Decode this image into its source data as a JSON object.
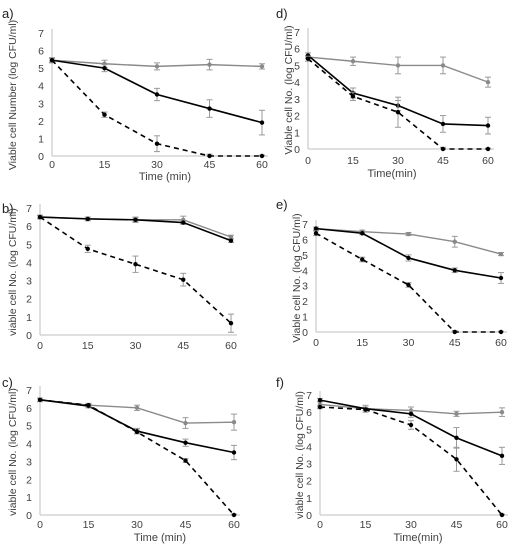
{
  "chart_data": [
    {
      "panel_label": "a)",
      "type": "line",
      "ylabel": "Viable cell Number (log CFU/ml)",
      "xlabel": "Time (min)",
      "x": [
        0,
        15,
        30,
        45,
        60
      ],
      "xticks": [
        "0",
        "15",
        "30",
        "45",
        "60"
      ],
      "ylim": [
        0,
        7
      ],
      "yticks": [
        "0",
        "1",
        "2",
        "3",
        "4",
        "5",
        "6",
        "7"
      ],
      "series": [
        {
          "style": "gray-solid",
          "values": [
            5.45,
            5.25,
            5.1,
            5.2,
            5.1
          ],
          "err": [
            0.15,
            0.2,
            0.2,
            0.3,
            0.15
          ]
        },
        {
          "style": "black-solid",
          "values": [
            5.45,
            5.0,
            3.5,
            2.7,
            1.9
          ],
          "err": [
            0.1,
            0.2,
            0.35,
            0.5,
            0.7
          ]
        },
        {
          "style": "black-dashed",
          "values": [
            5.45,
            2.35,
            0.7,
            0.0,
            0.0
          ],
          "err": [
            0.1,
            0.15,
            0.45,
            0.1,
            0.05
          ]
        }
      ]
    },
    {
      "panel_label": "b)",
      "type": "line",
      "ylabel": "viable cell No. (log CFU/ml)",
      "xlabel": "",
      "x": [
        0,
        15,
        30,
        45,
        60
      ],
      "xticks": [
        "0",
        "15",
        "30",
        "45",
        "60"
      ],
      "ylim": [
        0,
        7
      ],
      "yticks": [
        "0",
        "1",
        "2",
        "3",
        "4",
        "5",
        "6",
        "7"
      ],
      "series": [
        {
          "style": "gray-solid",
          "values": [
            6.5,
            6.4,
            6.35,
            6.35,
            5.4
          ],
          "err": [
            0.1,
            0.1,
            0.15,
            0.2,
            0.1
          ]
        },
        {
          "style": "black-solid",
          "values": [
            6.5,
            6.4,
            6.35,
            6.2,
            5.2
          ],
          "err": [
            0.1,
            0.1,
            0.1,
            0.1,
            0.1
          ]
        },
        {
          "style": "black-dashed",
          "values": [
            6.5,
            4.75,
            3.9,
            3.05,
            0.65
          ],
          "err": [
            0.1,
            0.2,
            0.45,
            0.35,
            0.5
          ]
        }
      ]
    },
    {
      "panel_label": "c)",
      "type": "line",
      "ylabel": "viable cell No. (log CFU/ml)",
      "xlabel": "Time (min)",
      "x": [
        0,
        15,
        30,
        45,
        60
      ],
      "xticks": [
        "0",
        "15",
        "30",
        "45",
        "60"
      ],
      "ylim": [
        0,
        7
      ],
      "yticks": [
        "0",
        "1",
        "2",
        "3",
        "4",
        "5",
        "6",
        "7"
      ],
      "series": [
        {
          "style": "gray-solid",
          "values": [
            6.45,
            6.15,
            6.0,
            5.15,
            5.2
          ],
          "err": [
            0.1,
            0.1,
            0.15,
            0.3,
            0.45
          ]
        },
        {
          "style": "black-solid",
          "values": [
            6.45,
            6.1,
            4.7,
            4.05,
            3.5
          ],
          "err": [
            0.1,
            0.1,
            0.15,
            0.2,
            0.4
          ]
        },
        {
          "style": "black-dashed",
          "values": [
            6.45,
            6.15,
            4.65,
            3.05,
            0.0
          ],
          "err": [
            0.1,
            0.1,
            0.1,
            0.1,
            0.05
          ]
        }
      ]
    },
    {
      "panel_label": "d)",
      "type": "line",
      "ylabel": "Viable cell No. (log CFU/ml)",
      "xlabel": "Time(min)",
      "x": [
        0,
        15,
        30,
        45,
        60
      ],
      "xticks": [
        "0",
        "15",
        "30",
        "45",
        "60"
      ],
      "ylim": [
        0,
        7
      ],
      "yticks": [
        "0",
        "1",
        "2",
        "3",
        "4",
        "5",
        "6",
        "7"
      ],
      "series": [
        {
          "style": "gray-solid",
          "values": [
            5.5,
            5.25,
            5.0,
            5.0,
            4.0
          ],
          "err": [
            0.1,
            0.25,
            0.5,
            0.5,
            0.3
          ]
        },
        {
          "style": "black-solid",
          "values": [
            5.6,
            3.35,
            2.6,
            1.5,
            1.4
          ],
          "err": [
            0.15,
            0.3,
            0.3,
            0.5,
            0.5
          ]
        },
        {
          "style": "black-dashed",
          "values": [
            5.4,
            3.15,
            2.2,
            0.0,
            0.0
          ],
          "err": [
            0.15,
            0.25,
            0.9,
            0.1,
            0.05
          ]
        }
      ]
    },
    {
      "panel_label": "e)",
      "type": "line",
      "ylabel": "Viable cell No. (log CFU/ml)",
      "xlabel": "",
      "x": [
        0,
        15,
        30,
        45,
        60
      ],
      "xticks": [
        "0",
        "15",
        "30",
        "45",
        "60"
      ],
      "ylim": [
        0,
        7
      ],
      "yticks": [
        "0",
        "1",
        "2",
        "3",
        "4",
        "5",
        "6",
        "7"
      ],
      "series": [
        {
          "style": "gray-solid",
          "values": [
            6.7,
            6.5,
            6.35,
            5.85,
            5.05
          ],
          "err": [
            0.1,
            0.1,
            0.1,
            0.35,
            0.1
          ]
        },
        {
          "style": "black-solid",
          "values": [
            6.7,
            6.4,
            4.8,
            4.0,
            3.5
          ],
          "err": [
            0.1,
            0.1,
            0.2,
            0.15,
            0.35
          ]
        },
        {
          "style": "black-dashed",
          "values": [
            6.4,
            4.7,
            3.05,
            0.0,
            0.0
          ],
          "err": [
            0.15,
            0.15,
            0.15,
            0.1,
            0.05
          ]
        }
      ]
    },
    {
      "panel_label": "f)",
      "type": "line",
      "ylabel": "viable cell No. (log CFU/ml)",
      "xlabel": "Time(min)",
      "x": [
        0,
        15,
        30,
        45,
        60
      ],
      "xticks": [
        "0",
        "15",
        "30",
        "45",
        "60"
      ],
      "ylim": [
        0,
        7
      ],
      "yticks": [
        "0",
        "1",
        "2",
        "3",
        "4",
        "5",
        "6",
        "7"
      ],
      "series": [
        {
          "style": "gray-solid",
          "values": [
            6.45,
            6.2,
            6.1,
            5.9,
            6.0
          ],
          "err": [
            0.15,
            0.2,
            0.2,
            0.15,
            0.25
          ]
        },
        {
          "style": "black-solid",
          "values": [
            6.7,
            6.2,
            5.9,
            4.5,
            3.45
          ],
          "err": [
            0.1,
            0.1,
            0.2,
            0.6,
            0.5
          ]
        },
        {
          "style": "black-dashed",
          "values": [
            6.3,
            6.15,
            5.25,
            3.25,
            0.0
          ],
          "err": [
            0.1,
            0.15,
            0.25,
            0.7,
            0.05
          ]
        }
      ]
    }
  ],
  "colors": {
    "gray_line": "#8a8a8a",
    "black_line": "#000000",
    "axis": "#bfbfbf",
    "error_bar": "#9a9a9a",
    "text": "#404040"
  }
}
